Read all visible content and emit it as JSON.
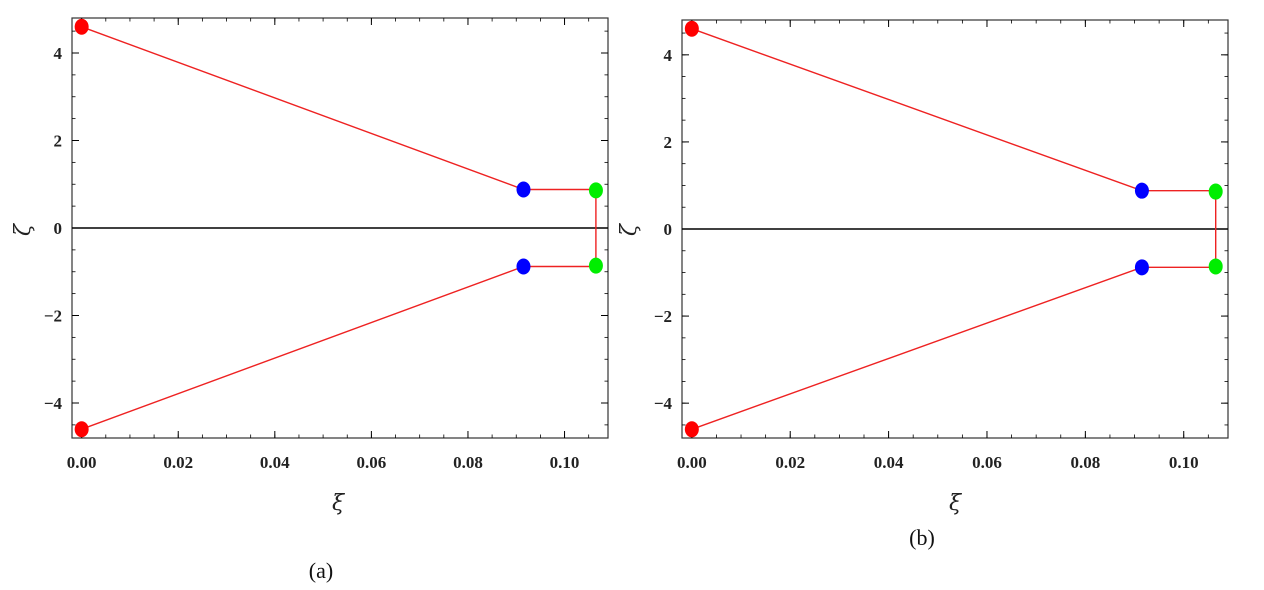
{
  "chart_data": [
    {
      "type": "line",
      "caption": "(a)",
      "xlabel": "ξ",
      "ylabel": "ζ",
      "xlim": [
        -0.002,
        0.109
      ],
      "ylim": [
        -4.8,
        4.8
      ],
      "x_ticks": [
        0.0,
        0.02,
        0.04,
        0.06,
        0.08,
        0.1
      ],
      "x_tick_labels": [
        "0.00",
        "0.02",
        "0.04",
        "0.06",
        "0.08",
        "0.10"
      ],
      "y_ticks": [
        -4,
        -2,
        0,
        2,
        4
      ],
      "y_tick_labels": [
        "−4",
        "−2",
        "0",
        "2",
        "4"
      ],
      "zero_line": true,
      "grid": false,
      "polyline": [
        [
          0.0,
          4.6
        ],
        [
          0.0915,
          0.88
        ],
        [
          0.1065,
          0.88
        ],
        [
          0.1065,
          -0.88
        ],
        [
          0.0915,
          -0.88
        ],
        [
          0.0,
          -4.6
        ]
      ],
      "points": [
        {
          "x": 0.0,
          "y": 4.6,
          "color": "#ff0000"
        },
        {
          "x": 0.0,
          "y": -4.6,
          "color": "#ff0000"
        },
        {
          "x": 0.0915,
          "y": 0.88,
          "color": "#0000ff"
        },
        {
          "x": 0.0915,
          "y": -0.88,
          "color": "#0000ff"
        },
        {
          "x": 0.1065,
          "y": 0.86,
          "color": "#00ee00"
        },
        {
          "x": 0.1065,
          "y": -0.86,
          "color": "#00ee00"
        }
      ]
    },
    {
      "type": "line",
      "caption": "(b)",
      "xlabel": "ξ",
      "ylabel": "ζ",
      "xlim": [
        -0.002,
        0.109
      ],
      "ylim": [
        -4.8,
        4.8
      ],
      "x_ticks": [
        0.0,
        0.02,
        0.04,
        0.06,
        0.08,
        0.1
      ],
      "x_tick_labels": [
        "0.00",
        "0.02",
        "0.04",
        "0.06",
        "0.08",
        "0.10"
      ],
      "y_ticks": [
        -4,
        -2,
        0,
        2,
        4
      ],
      "y_tick_labels": [
        "−4",
        "−2",
        "0",
        "2",
        "4"
      ],
      "zero_line": true,
      "grid": false,
      "polyline": [
        [
          0.0,
          4.6
        ],
        [
          0.0915,
          0.88
        ],
        [
          0.1065,
          0.88
        ],
        [
          0.1065,
          -0.88
        ],
        [
          0.0915,
          -0.88
        ],
        [
          0.0,
          -4.6
        ]
      ],
      "points": [
        {
          "x": 0.0,
          "y": 4.6,
          "color": "#ff0000"
        },
        {
          "x": 0.0,
          "y": -4.6,
          "color": "#ff0000"
        },
        {
          "x": 0.0915,
          "y": 0.88,
          "color": "#0000ff"
        },
        {
          "x": 0.0915,
          "y": -0.88,
          "color": "#0000ff"
        },
        {
          "x": 0.1065,
          "y": 0.86,
          "color": "#00ee00"
        },
        {
          "x": 0.1065,
          "y": -0.86,
          "color": "#00ee00"
        }
      ]
    }
  ],
  "line_color": "#ee2222",
  "axis_color": "#000000"
}
